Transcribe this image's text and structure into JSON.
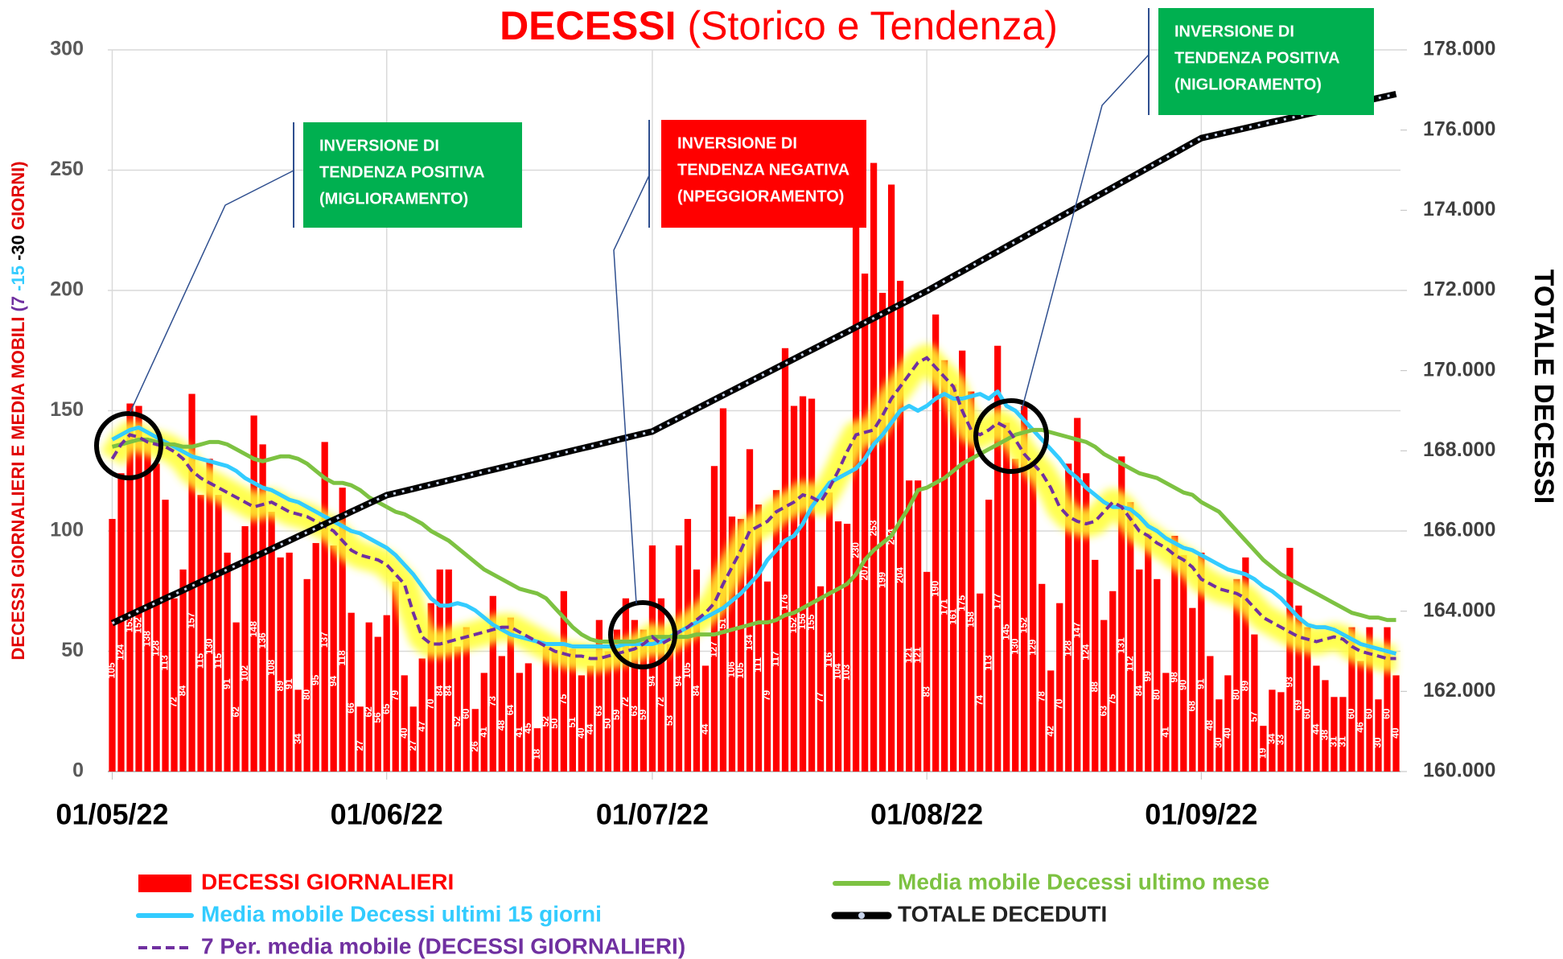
{
  "chart_data": {
    "type": "combo",
    "title": [
      "DECESSI",
      "(Storico e Tendenza)"
    ],
    "y_label": [
      {
        "text": "DECESSI GIORNALIERI E MEDIA MOBILI ",
        "color": "#e00000"
      },
      {
        "text": "(7 ",
        "color": "#7030a0"
      },
      {
        "text": "-15 ",
        "color": "#33ccff"
      },
      {
        "text": "-30 ",
        "color": "#000000"
      },
      {
        "text": "GIORNI)",
        "color": "#e00000"
      }
    ],
    "y2_label": "TOTALE DECESSI",
    "categories": [
      "01/05/22",
      null,
      null,
      null,
      null,
      null,
      null,
      null,
      null,
      null,
      null,
      null,
      null,
      null,
      null,
      null,
      null,
      null,
      null,
      null,
      null,
      null,
      null,
      null,
      null,
      null,
      null,
      null,
      null,
      null,
      null,
      "01/06/22",
      null,
      null,
      null,
      null,
      null,
      null,
      null,
      null,
      null,
      null,
      null,
      null,
      null,
      null,
      null,
      null,
      null,
      null,
      null,
      null,
      null,
      null,
      null,
      null,
      null,
      null,
      null,
      null,
      null,
      "01/07/22",
      null,
      null,
      null,
      null,
      null,
      null,
      null,
      null,
      null,
      null,
      null,
      null,
      null,
      null,
      null,
      null,
      null,
      null,
      null,
      null,
      null,
      null,
      null,
      null,
      null,
      null,
      null,
      null,
      null,
      null,
      "01/08/22",
      null,
      null,
      null,
      null,
      null,
      null,
      null,
      null,
      null,
      null,
      null,
      null,
      null,
      null,
      null,
      null,
      null,
      null,
      null,
      null,
      null,
      null,
      null,
      null,
      null,
      null,
      null,
      null,
      null,
      null,
      "01/09/22",
      null,
      null,
      null,
      null,
      null,
      null,
      null,
      null,
      null,
      null,
      null,
      null,
      null,
      null,
      null,
      null,
      null,
      null,
      null,
      null,
      null,
      null
    ],
    "ylim": [
      0,
      300
    ],
    "yticks": [
      0,
      50,
      100,
      150,
      200,
      250,
      300
    ],
    "y2lim": [
      160000,
      178000
    ],
    "y2ticks": [
      {
        "value": 160000,
        "label": "160.000"
      },
      {
        "value": 162000,
        "label": "162.000"
      },
      {
        "value": 164000,
        "label": "164.000"
      },
      {
        "value": 166000,
        "label": "166.000"
      },
      {
        "value": 168000,
        "label": "168.000"
      },
      {
        "value": 170000,
        "label": "170.000"
      },
      {
        "value": 172000,
        "label": "172.000"
      },
      {
        "value": 174000,
        "label": "174.000"
      },
      {
        "value": 176000,
        "label": "176.000"
      },
      {
        "value": 178000,
        "label": "178.000"
      }
    ],
    "grid": true,
    "series": [
      {
        "name": "DECESSI GIORNALIERI",
        "kind": "bar",
        "color": "#ff0000",
        "values": [
          105,
          124,
          153,
          152,
          138,
          128,
          113,
          72,
          84,
          157,
          115,
          130,
          115,
          91,
          62,
          102,
          148,
          136,
          108,
          89,
          91,
          34,
          80,
          95,
          137,
          94,
          118,
          66,
          27,
          62,
          56,
          65,
          79,
          40,
          27,
          47,
          70,
          84,
          84,
          52,
          60,
          26,
          41,
          73,
          48,
          64,
          41,
          45,
          18,
          52,
          50,
          75,
          51,
          40,
          44,
          63,
          50,
          59,
          72,
          63,
          59,
          94,
          72,
          53,
          94,
          105,
          84,
          44,
          127,
          151,
          106,
          105,
          134,
          111,
          79,
          117,
          176,
          152,
          156,
          155,
          77,
          116,
          104,
          103,
          230,
          207,
          253,
          199,
          244,
          204,
          121,
          121,
          83,
          190,
          171,
          161,
          175,
          158,
          74,
          113,
          177,
          145,
          130,
          152,
          129,
          78,
          42,
          70,
          128,
          147,
          124,
          88,
          63,
          75,
          131,
          112,
          84,
          99,
          80,
          41,
          98,
          90,
          68,
          91,
          48,
          30,
          40,
          80,
          89,
          57,
          19,
          34,
          33,
          93,
          69,
          60,
          44,
          38,
          31,
          31,
          60,
          46,
          60,
          30,
          60,
          40
        ]
      },
      {
        "name": "Media mobile Decessi ultimi 15 giorni",
        "kind": "line",
        "color": "#33ccff",
        "values": [
          138,
          140,
          142,
          143,
          141,
          139,
          137,
          135,
          133,
          131,
          130,
          129,
          128,
          127,
          125,
          122,
          120,
          118,
          117,
          115,
          113,
          112,
          110,
          108,
          106,
          104,
          102,
          100,
          99,
          97,
          95,
          93,
          90,
          86,
          82,
          77,
          72,
          69,
          69,
          70,
          69,
          67,
          64,
          61,
          59,
          57,
          56,
          55,
          54,
          53,
          53,
          53,
          52,
          52,
          52,
          52,
          52,
          52,
          53,
          53,
          53,
          53,
          54,
          56,
          58,
          60,
          62,
          64,
          66,
          68,
          71,
          74,
          78,
          82,
          88,
          92,
          96,
          98,
          103,
          110,
          115,
          120,
          122,
          124,
          126,
          130,
          136,
          140,
          145,
          150,
          152,
          150,
          152,
          155,
          157,
          155,
          155,
          156,
          157,
          155,
          158,
          152,
          150,
          146,
          142,
          138,
          134,
          130,
          125,
          122,
          118,
          115,
          112,
          110,
          110,
          109,
          106,
          102,
          100,
          97,
          95,
          93,
          92,
          90,
          88,
          86,
          84,
          83,
          82,
          80,
          77,
          75,
          72,
          68,
          64,
          61,
          60,
          60,
          59,
          57,
          55,
          53,
          52,
          51,
          50,
          49
        ]
      },
      {
        "name": "7 Per. media mobile (DECESSI GIORNALIERI)",
        "kind": "dashed",
        "color": "#7030a0",
        "values": [
          130,
          136,
          140,
          139,
          137,
          136,
          135,
          133,
          130,
          125,
          122,
          120,
          118,
          116,
          114,
          112,
          110,
          111,
          112,
          110,
          108,
          107,
          106,
          104,
          102,
          100,
          96,
          92,
          90,
          89,
          88,
          86,
          82,
          78,
          66,
          56,
          53,
          53,
          54,
          55,
          56,
          57,
          58,
          59,
          60,
          60,
          58,
          56,
          54,
          52,
          50,
          49,
          48,
          48,
          47,
          47,
          48,
          49,
          50,
          51,
          53,
          56,
          53,
          55,
          58,
          60,
          63,
          66,
          70,
          78,
          85,
          92,
          100,
          102,
          104,
          108,
          110,
          112,
          115,
          114,
          112,
          118,
          125,
          133,
          140,
          141,
          142,
          148,
          155,
          160,
          165,
          170,
          172,
          168,
          164,
          160,
          150,
          142,
          140,
          142,
          145,
          143,
          138,
          132,
          128,
          124,
          118,
          110,
          106,
          104,
          103,
          104,
          108,
          112,
          110,
          105,
          100,
          98,
          95,
          93,
          90,
          88,
          85,
          80,
          78,
          76,
          75,
          74,
          72,
          68,
          64,
          62,
          60,
          58,
          56,
          55,
          54,
          55,
          56,
          55,
          52,
          50,
          49,
          48,
          47,
          47
        ]
      },
      {
        "name": "Media mobile Decessi ultimo mese",
        "kind": "line",
        "color": "#7dc242",
        "values": [
          135,
          136,
          137,
          138,
          138,
          137,
          136,
          136,
          135,
          135,
          136,
          137,
          137,
          136,
          134,
          132,
          130,
          129,
          130,
          131,
          131,
          130,
          128,
          125,
          122,
          120,
          120,
          119,
          117,
          114,
          112,
          110,
          108,
          107,
          105,
          103,
          100,
          98,
          96,
          93,
          90,
          87,
          84,
          82,
          80,
          78,
          76,
          75,
          74,
          72,
          68,
          64,
          60,
          57,
          55,
          54,
          54,
          54,
          54,
          54,
          55,
          56,
          56,
          56,
          56,
          56,
          57,
          57,
          57,
          58,
          59,
          60,
          61,
          62,
          62,
          63,
          65,
          66,
          68,
          70,
          72,
          74,
          76,
          78,
          82,
          88,
          92,
          95,
          98,
          104,
          110,
          117,
          118,
          120,
          122,
          125,
          128,
          130,
          132,
          134,
          136,
          138,
          140,
          141,
          142,
          142,
          141,
          140,
          139,
          138,
          137,
          135,
          132,
          130,
          128,
          126,
          124,
          123,
          122,
          120,
          118,
          116,
          115,
          112,
          110,
          108,
          104,
          100,
          96,
          92,
          88,
          85,
          82,
          80,
          78,
          76,
          74,
          72,
          70,
          68,
          66,
          65,
          64,
          64,
          63,
          63
        ]
      },
      {
        "name": "TOTALE DECEDUTI",
        "kind": "total",
        "axis": "y2",
        "color": "#000000",
        "values": [
          163700,
          163803,
          163906,
          164009,
          164112,
          164215,
          164318,
          164421,
          164524,
          164627,
          164730,
          164833,
          164936,
          165039,
          165142,
          165245,
          165348,
          165451,
          165554,
          165657,
          165760,
          165863,
          165966,
          166069,
          166172,
          166275,
          166378,
          166481,
          166584,
          166687,
          166790,
          166893,
          166946,
          166999,
          167052,
          167105,
          167158,
          167211,
          167264,
          167317,
          167370,
          167423,
          167476,
          167529,
          167582,
          167635,
          167688,
          167741,
          167794,
          167847,
          167900,
          167953,
          168006,
          168059,
          168112,
          168165,
          168218,
          168271,
          168324,
          168377,
          168430,
          168483,
          168596,
          168709,
          168822,
          168935,
          169048,
          169161,
          169274,
          169387,
          169500,
          169613,
          169726,
          169839,
          169952,
          170065,
          170178,
          170291,
          170404,
          170517,
          170630,
          170743,
          170856,
          170969,
          171082,
          171195,
          171308,
          171421,
          171534,
          171647,
          171760,
          171873,
          171986,
          172109,
          172232,
          172355,
          172478,
          172601,
          172724,
          172847,
          172970,
          173093,
          173216,
          173339,
          173462,
          173585,
          173708,
          173831,
          173954,
          174077,
          174200,
          174323,
          174446,
          174569,
          174692,
          174815,
          174938,
          175061,
          175184,
          175307,
          175430,
          175553,
          175676,
          175799,
          175849,
          175899,
          175949,
          175999,
          176049,
          176099,
          176149,
          176199,
          176249,
          176299,
          176349,
          176399,
          176449,
          176499,
          176549,
          176599,
          176649,
          176699,
          176749,
          176799,
          176849,
          176899
        ]
      }
    ],
    "annotations": [
      {
        "text": [
          "INVERSIONE DI",
          "TENDENZA POSITIVA",
          "(MIGLIORAMENTO)"
        ],
        "color": "#00b050"
      },
      {
        "text": [
          "INVERSIONE DI",
          "TENDENZA NEGATIVA",
          "(NPEGGIORAMENTO)"
        ],
        "color": "#ff0000"
      },
      {
        "text": [
          "INVERSIONE DI",
          "TENDENZA POSITIVA",
          "(NIGLIORAMENTO)"
        ],
        "color": "#00b050"
      }
    ]
  }
}
